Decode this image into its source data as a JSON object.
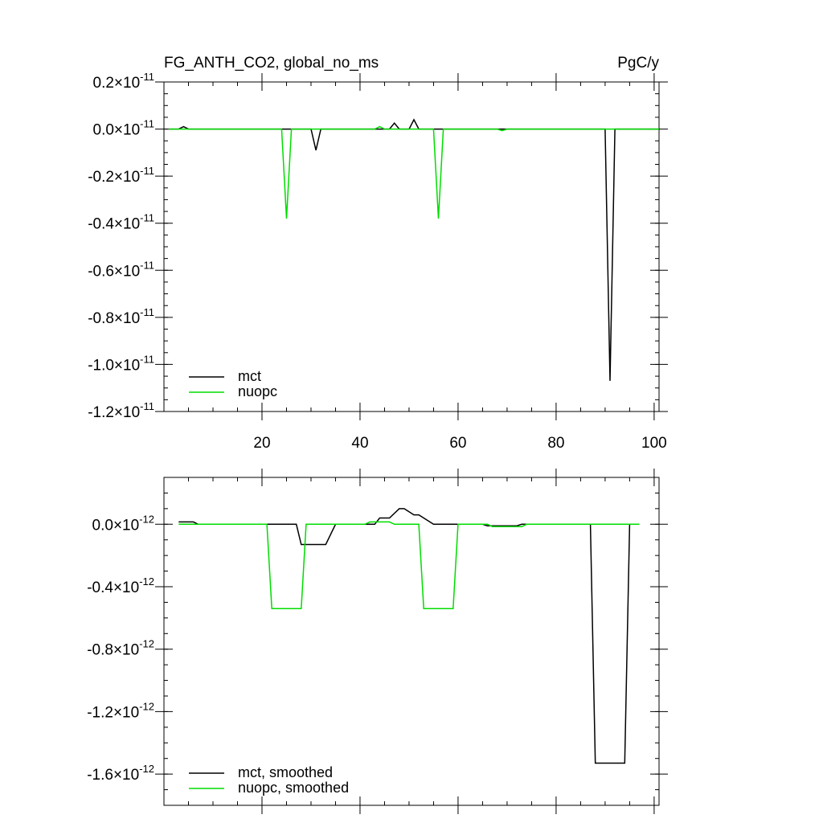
{
  "chart_data": [
    {
      "type": "line",
      "title_left": "FG_ANTH_CO2, global_no_ms",
      "title_right": "PgC/y",
      "xlim": [
        0,
        101
      ],
      "ylim": [
        -1.2e-11,
        2e-12
      ],
      "x_ticks": [
        20,
        40,
        60,
        80,
        100
      ],
      "x_tick_labels": [
        "20",
        "40",
        "60",
        "80",
        "100"
      ],
      "y_ticks": [
        2e-12,
        0,
        -2e-12,
        -4e-12,
        -6e-12,
        -8e-12,
        -1e-11,
        -1.2e-11
      ],
      "y_tick_mantissas": [
        "0.2",
        "0.0",
        "-0.2",
        "-0.4",
        "-0.6",
        "-0.8",
        "-1.0",
        "-1.2"
      ],
      "y_tick_exponent": "-11",
      "legend_position": "bottom-left",
      "series": [
        {
          "name": "mct",
          "color": "#000000",
          "x": [
            1,
            3,
            4,
            5,
            29,
            30,
            31,
            32,
            44,
            45,
            46,
            47,
            48,
            49,
            50,
            51,
            52,
            53,
            89,
            90,
            91,
            92,
            101
          ],
          "y": [
            0,
            0,
            1e-13,
            0,
            0,
            0,
            -9e-13,
            0,
            0,
            0,
            0,
            2.5e-13,
            0,
            0,
            0,
            4e-13,
            0,
            0,
            0,
            0,
            -1.07e-11,
            0,
            0
          ]
        },
        {
          "name": "nuopc",
          "color": "#00dd00",
          "x": [
            1,
            23,
            24,
            25,
            26,
            43,
            44,
            45,
            55,
            56,
            57,
            68,
            69,
            70,
            101
          ],
          "y": [
            0,
            0,
            0,
            -3.8e-12,
            0,
            0,
            1e-13,
            0,
            0,
            -3.8e-12,
            0,
            0,
            -7e-14,
            0,
            0
          ]
        }
      ]
    },
    {
      "type": "line",
      "xlim": [
        0,
        101
      ],
      "ylim": [
        -1.8e-12,
        3e-13
      ],
      "y_ticks": [
        0,
        -4e-13,
        -8e-13,
        -1.2e-12,
        -1.6e-12
      ],
      "y_tick_mantissas": [
        "0.0",
        "-0.4",
        "-0.8",
        "-1.2",
        "-1.6"
      ],
      "y_tick_exponent": "-12",
      "legend_position": "bottom-left",
      "series": [
        {
          "name": "mct, smoothed",
          "color": "#000000",
          "x": [
            3,
            6,
            7,
            20,
            27,
            28,
            33,
            35,
            42,
            43,
            44,
            46,
            48,
            49,
            51,
            52,
            55,
            56,
            65,
            66,
            72,
            73,
            87,
            88,
            94,
            95
          ],
          "y": [
            1.5e-14,
            1.5e-14,
            0,
            0,
            0,
            -1.3e-13,
            -1.3e-13,
            0,
            0,
            0,
            4e-14,
            4e-14,
            1e-13,
            1e-13,
            6e-14,
            6e-14,
            0,
            0,
            0,
            -1e-14,
            -1e-14,
            0,
            0,
            -1.53e-12,
            -1.53e-12,
            0
          ]
        },
        {
          "name": "nuopc, smoothed",
          "color": "#00dd00",
          "x": [
            3,
            21,
            22,
            28,
            29,
            40,
            41,
            42,
            46,
            47,
            52,
            53,
            59,
            60,
            66,
            67,
            73,
            74,
            97
          ],
          "y": [
            0,
            0,
            -5.4e-13,
            -5.4e-13,
            0,
            0,
            0,
            1.5e-14,
            1.5e-14,
            0,
            0,
            -5.4e-13,
            -5.4e-13,
            0,
            0,
            -1.5e-14,
            -1.5e-14,
            0,
            0
          ]
        }
      ]
    }
  ]
}
